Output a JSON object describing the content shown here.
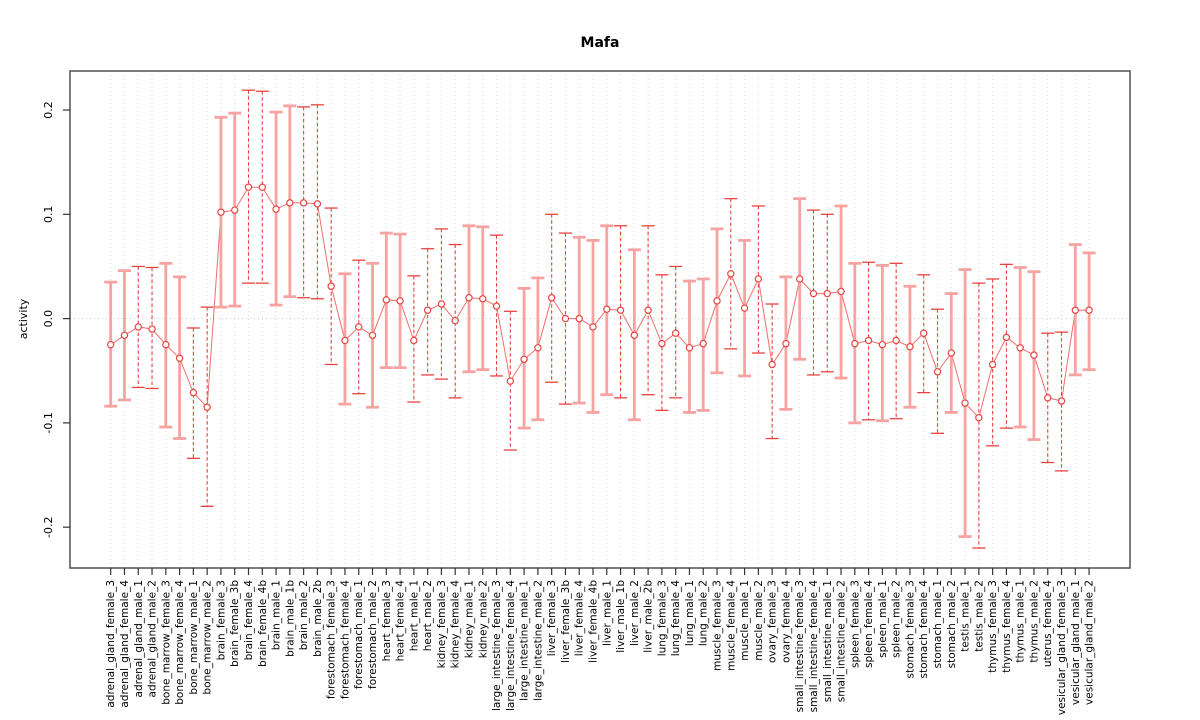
{
  "chart_data": {
    "type": "scatter",
    "subtype": "points-with-error-bars-connected-line",
    "title": "Mafa",
    "xlabel": "",
    "ylabel": "activity",
    "ylim": [
      -0.24,
      0.24
    ],
    "yticks": [
      0.2,
      0.1,
      0.0,
      -0.1,
      -0.2
    ],
    "ytick_labels": [
      "0.2",
      "0.1",
      "0.0",
      "-0.1",
      "-0.2"
    ],
    "grid": "vertical dotted line at every category; horizontal dotted line at y=0 only",
    "legend": "none",
    "colors": {
      "point": "#e8433f",
      "line": "#ee6f6b",
      "dashed_bar": "#e8433f",
      "solid_bar": "#f6a3a1",
      "grid": "#d9d9d9",
      "zero_line": "#cccccc",
      "frame": "#5a5a5a",
      "tick": "#333333",
      "background": "#ffffff"
    },
    "categories": [
      "adrenal_gland_female_3",
      "adrenal_gland_female_4",
      "adrenal_gland_male_1",
      "adrenal_gland_male_2",
      "bone_marrow_female_3",
      "bone_marrow_female_4",
      "bone_marrow_male_1",
      "bone_marrow_male_2",
      "brain_female_3",
      "brain_female_3b",
      "brain_female_4",
      "brain_female_4b",
      "brain_male_1",
      "brain_male_1b",
      "brain_male_2",
      "brain_male_2b",
      "forestomach_female_3",
      "forestomach_female_4",
      "forestomach_male_1",
      "forestomach_male_2",
      "heart_female_3",
      "heart_female_4",
      "heart_male_1",
      "heart_male_2",
      "kidney_female_3",
      "kidney_female_4",
      "kidney_male_1",
      "kidney_male_2",
      "large_intestine_female_3",
      "large_intestine_female_4",
      "large_intestine_male_1",
      "large_intestine_male_2",
      "liver_female_3",
      "liver_female_3b",
      "liver_female_4",
      "liver_female_4b",
      "liver_male_1",
      "liver_male_1b",
      "liver_male_2",
      "liver_male_2b",
      "lung_female_3",
      "lung_female_4",
      "lung_male_1",
      "lung_male_2",
      "muscle_female_3",
      "muscle_female_4",
      "muscle_male_1",
      "muscle_male_2",
      "ovary_female_3",
      "ovary_female_4",
      "small_intestine_female_3",
      "small_intestine_female_4",
      "small_intestine_male_1",
      "small_intestine_male_2",
      "spleen_female_3",
      "spleen_female_4",
      "spleen_male_1",
      "spleen_male_2",
      "stomach_female_3",
      "stomach_female_4",
      "stomach_male_1",
      "stomach_male_2",
      "testis_male_1",
      "testis_male_2",
      "thymus_female_3",
      "thymus_female_4",
      "thymus_male_1",
      "thymus_male_2",
      "uterus_female_4",
      "vesicular_gland_female_3",
      "vesicular_gland_male_1",
      "vesicular_gland_male_2"
    ],
    "series": [
      {
        "name": "activity",
        "values": [
          -0.025,
          -0.016,
          -0.008,
          -0.01,
          -0.025,
          -0.038,
          -0.071,
          -0.085,
          0.102,
          0.104,
          0.126,
          0.126,
          0.105,
          0.111,
          0.111,
          0.11,
          0.031,
          -0.021,
          -0.008,
          -0.016,
          0.018,
          0.017,
          -0.021,
          0.008,
          0.014,
          -0.002,
          0.02,
          0.019,
          0.012,
          -0.06,
          -0.039,
          -0.028,
          0.02,
          0.0,
          0.0,
          -0.008,
          0.009,
          0.008,
          -0.016,
          0.008,
          -0.024,
          -0.014,
          -0.028,
          -0.024,
          0.017,
          0.043,
          0.01,
          0.038,
          -0.044,
          -0.024,
          0.038,
          0.024,
          0.024,
          0.026,
          -0.024,
          -0.021,
          -0.025,
          -0.021,
          -0.027,
          -0.014,
          -0.051,
          -0.033,
          -0.081,
          -0.095,
          -0.044,
          -0.018,
          -0.028,
          -0.035,
          -0.076,
          -0.079,
          0.008,
          0.008
        ],
        "upper": [
          0.035,
          0.046,
          0.05,
          0.049,
          0.053,
          0.04,
          -0.009,
          0.011,
          0.193,
          0.197,
          0.219,
          0.218,
          0.198,
          0.204,
          0.203,
          0.205,
          0.106,
          0.043,
          0.056,
          0.053,
          0.082,
          0.081,
          0.041,
          0.067,
          0.086,
          0.071,
          0.089,
          0.088,
          0.08,
          0.007,
          0.029,
          0.039,
          0.1,
          0.082,
          0.078,
          0.075,
          0.089,
          0.089,
          0.066,
          0.089,
          0.042,
          0.05,
          0.036,
          0.038,
          0.086,
          0.115,
          0.075,
          0.108,
          0.014,
          0.04,
          0.115,
          0.104,
          0.1,
          0.108,
          0.053,
          0.054,
          0.051,
          0.053,
          0.031,
          0.042,
          0.009,
          0.024,
          0.047,
          0.034,
          0.038,
          0.052,
          0.049,
          0.045,
          -0.014,
          -0.013,
          0.071,
          0.063
        ],
        "lower": [
          -0.084,
          -0.078,
          -0.066,
          -0.067,
          -0.104,
          -0.115,
          -0.134,
          -0.18,
          0.011,
          0.012,
          0.034,
          0.034,
          0.013,
          0.021,
          0.02,
          0.019,
          -0.044,
          -0.082,
          -0.072,
          -0.085,
          -0.047,
          -0.047,
          -0.08,
          -0.054,
          -0.058,
          -0.076,
          -0.051,
          -0.049,
          -0.055,
          -0.126,
          -0.105,
          -0.097,
          -0.061,
          -0.082,
          -0.081,
          -0.09,
          -0.073,
          -0.076,
          -0.097,
          -0.073,
          -0.088,
          -0.076,
          -0.09,
          -0.088,
          -0.052,
          -0.029,
          -0.055,
          -0.033,
          -0.115,
          -0.087,
          -0.039,
          -0.054,
          -0.051,
          -0.057,
          -0.1,
          -0.097,
          -0.098,
          -0.096,
          -0.085,
          -0.071,
          -0.11,
          -0.09,
          -0.209,
          -0.22,
          -0.122,
          -0.105,
          -0.104,
          -0.116,
          -0.138,
          -0.146,
          -0.054,
          -0.049
        ],
        "bar_style": [
          "solid",
          "solid",
          "dashed",
          "dashed",
          "solid",
          "solid",
          "dashed",
          "dashed",
          "solid",
          "solid",
          "dashed",
          "dashed",
          "solid",
          "solid",
          "dashed",
          "dashed",
          "dashed",
          "solid",
          "dashed",
          "solid",
          "solid",
          "solid",
          "dashed",
          "dashed",
          "dashed",
          "dashed",
          "solid",
          "solid",
          "dashed",
          "dashed",
          "solid",
          "solid",
          "dashed",
          "dashed",
          "solid",
          "solid",
          "solid",
          "dashed",
          "solid",
          "dashed",
          "dashed",
          "dashed",
          "solid",
          "solid",
          "solid",
          "dashed",
          "solid",
          "dashed",
          "dashed",
          "solid",
          "solid",
          "dashed",
          "dashed",
          "solid",
          "solid",
          "dashed",
          "solid",
          "dashed",
          "solid",
          "dashed",
          "dashed",
          "solid",
          "solid",
          "dashed",
          "dashed",
          "dashed",
          "solid",
          "solid",
          "dashed",
          "dashed",
          "solid",
          "solid"
        ]
      }
    ]
  }
}
